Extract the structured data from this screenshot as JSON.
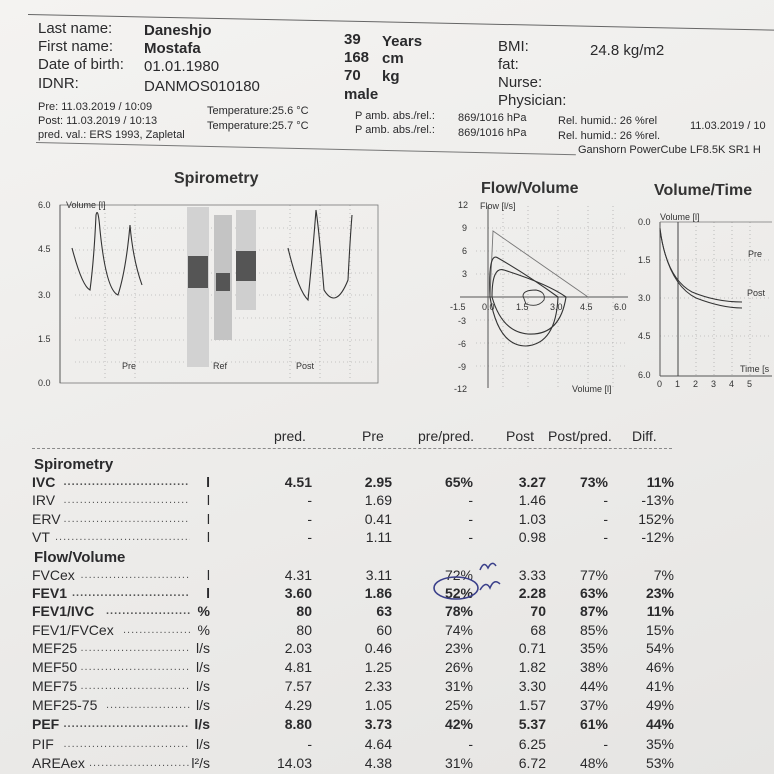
{
  "patient": {
    "last_name_label": "Last name:",
    "last_name": "Daneshjo",
    "first_name_label": "First name:",
    "first_name": "Mostafa",
    "dob_label": "Date of birth:",
    "dob": "01.01.1980",
    "idnr_label": "IDNR:",
    "idnr": "DANMOS010180",
    "age": "39",
    "age_unit": "Years",
    "height": "168",
    "height_unit": "cm",
    "weight": "70",
    "weight_unit": "kg",
    "sex": "male",
    "bmi_label": "BMI:",
    "bmi": "24.8 kg/m2",
    "fat_label": "fat:",
    "nurse_label": "Nurse:",
    "physician_label": "Physician:"
  },
  "sessions": {
    "pre_line": "Pre: 11.03.2019 / 10:09",
    "post_line": "Post: 11.03.2019 / 10:13",
    "pred_line": "pred. val.: ERS 1993, Zapletal",
    "temp_pre": "Temperature:25.6 °C",
    "temp_post": "Temperature:25.7 °C",
    "pamb_pre": "P amb. abs./rel.:",
    "pamb_pre_val": "869/1016 hPa",
    "pamb_post": "P amb. abs./rel.:",
    "pamb_post_val": "869/1016 hPa",
    "humid_pre": "Rel. humid.: 26 %rel",
    "humid_post": "Rel. humid.: 26 %rel.",
    "date_right": "11.03.2019 / 10",
    "device": "Ganshorn PowerCube LF8.5K SR1 H"
  },
  "charts": {
    "spiro_title": "Spirometry",
    "spiro_ylabel": "Volume [l]",
    "spiro_yticks": [
      "6.0",
      "4.5",
      "3.0",
      "1.5",
      "0.0"
    ],
    "spiro_labels": [
      "Pre",
      "Ref",
      "Post"
    ],
    "fv_title": "Flow/Volume",
    "fv_ylabel": "Flow [l/s]",
    "fv_yticks": [
      "12",
      "9",
      "6",
      "3",
      "0.0",
      "-3",
      "-6",
      "-9",
      "-12"
    ],
    "fv_xticks": [
      "-1.5",
      "0.0",
      "1.5",
      "3.0",
      "4.5",
      "6.0"
    ],
    "fv_xlabel": "Volume [l]",
    "vt_title": "Volume/Time",
    "vt_ylabel": "Volume [l]",
    "vt_yticks": [
      "0.0",
      "1.5",
      "3.0",
      "4.5",
      "6.0"
    ],
    "vt_xticks": [
      "0",
      "1",
      "2",
      "3",
      "4",
      "5"
    ],
    "vt_xlabel": "Time [s",
    "vt_legend_pre": "Pre",
    "vt_legend_post": "Post"
  },
  "table": {
    "headers": {
      "pred": "pred.",
      "pre": "Pre",
      "prepred": "pre/pred.",
      "post": "Post",
      "postpred": "Post/pred.",
      "diff": "Diff."
    },
    "section_spiro": "Spirometry",
    "section_fv": "Flow/Volume",
    "rows": [
      {
        "name": "IVC",
        "unit": "l",
        "pred": "4.51",
        "pre": "2.95",
        "prepred": "65%",
        "post": "3.27",
        "postpred": "73%",
        "diff": "11%",
        "bold": true
      },
      {
        "name": "IRV",
        "unit": "l",
        "pred": "-",
        "pre": "1.69",
        "prepred": "-",
        "post": "1.46",
        "postpred": "-",
        "diff": "-13%",
        "bold": false
      },
      {
        "name": "ERV",
        "unit": "l",
        "pred": "-",
        "pre": "0.41",
        "prepred": "-",
        "post": "1.03",
        "postpred": "-",
        "diff": "152%",
        "bold": false
      },
      {
        "name": "VT",
        "unit": "l",
        "pred": "-",
        "pre": "1.11",
        "prepred": "-",
        "post": "0.98",
        "postpred": "-",
        "diff": "-12%",
        "bold": false
      },
      {
        "name": "FVCex",
        "unit": "l",
        "pred": "4.31",
        "pre": "3.11",
        "prepred": "72%",
        "post": "3.33",
        "postpred": "77%",
        "diff": "7%",
        "bold": false
      },
      {
        "name": "FEV1",
        "unit": "l",
        "pred": "3.60",
        "pre": "1.86",
        "prepred": "52%",
        "post": "2.28",
        "postpred": "63%",
        "diff": "23%",
        "bold": true
      },
      {
        "name": "FEV1/IVC",
        "unit": "%",
        "pred": "80",
        "pre": "63",
        "prepred": "78%",
        "post": "70",
        "postpred": "87%",
        "diff": "11%",
        "bold": true
      },
      {
        "name": "FEV1/FVCex",
        "unit": "%",
        "pred": "80",
        "pre": "60",
        "prepred": "74%",
        "post": "68",
        "postpred": "85%",
        "diff": "15%",
        "bold": false
      },
      {
        "name": "MEF25",
        "unit": "l/s",
        "pred": "2.03",
        "pre": "0.46",
        "prepred": "23%",
        "post": "0.71",
        "postpred": "35%",
        "diff": "54%",
        "bold": false
      },
      {
        "name": "MEF50",
        "unit": "l/s",
        "pred": "4.81",
        "pre": "1.25",
        "prepred": "26%",
        "post": "1.82",
        "postpred": "38%",
        "diff": "46%",
        "bold": false
      },
      {
        "name": "MEF75",
        "unit": "l/s",
        "pred": "7.57",
        "pre": "2.33",
        "prepred": "31%",
        "post": "3.30",
        "postpred": "44%",
        "diff": "41%",
        "bold": false
      },
      {
        "name": "MEF25-75",
        "unit": "l/s",
        "pred": "4.29",
        "pre": "1.05",
        "prepred": "25%",
        "post": "1.57",
        "postpred": "37%",
        "diff": "49%",
        "bold": false
      },
      {
        "name": "PEF",
        "unit": "l/s",
        "pred": "8.80",
        "pre": "3.73",
        "prepred": "42%",
        "post": "5.37",
        "postpred": "61%",
        "diff": "44%",
        "bold": true
      },
      {
        "name": "PIF",
        "unit": "l/s",
        "pred": "-",
        "pre": "4.64",
        "prepred": "-",
        "post": "6.25",
        "postpred": "-",
        "diff": "35%",
        "bold": false
      },
      {
        "name": "AREAex",
        "unit": "l²/s",
        "pred": "14.03",
        "pre": "4.38",
        "prepred": "31%",
        "post": "6.72",
        "postpred": "48%",
        "diff": "53%",
        "bold": false
      }
    ]
  }
}
